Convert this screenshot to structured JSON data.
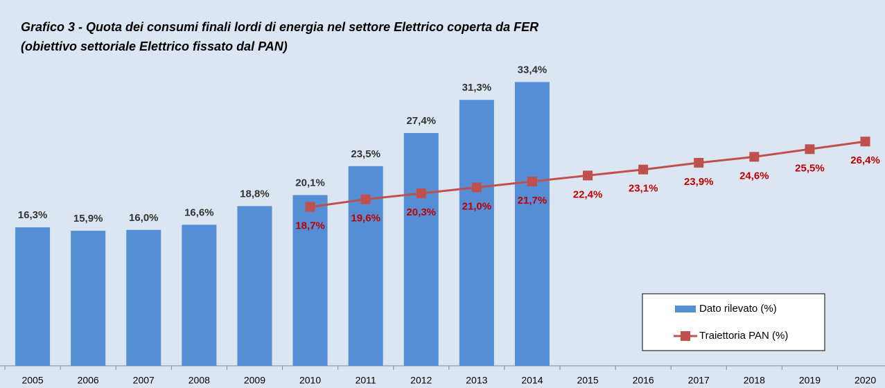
{
  "chart_data": {
    "type": "bar-line",
    "title": "Grafico 3 -  Quota dei consumi finali lordi di energia nel settore Elettrico coperta da FER",
    "subtitle": "(obiettivo settoriale Elettrico fissato dal PAN)",
    "categories": [
      "2005",
      "2006",
      "2007",
      "2008",
      "2009",
      "2010",
      "2011",
      "2012",
      "2013",
      "2014",
      "2015",
      "2016",
      "2017",
      "2018",
      "2019",
      "2020"
    ],
    "ylim": [
      0,
      38
    ],
    "legend": "bottom-right",
    "series": [
      {
        "name": "Dato rilevato (%)",
        "type": "bar",
        "color": "#558ed5",
        "values": [
          16.3,
          15.9,
          16.0,
          16.6,
          18.8,
          20.1,
          23.5,
          27.4,
          31.3,
          33.4,
          null,
          null,
          null,
          null,
          null,
          null
        ],
        "value_labels": [
          "16,3%",
          "15,9%",
          "16,0%",
          "16,6%",
          "18,8%",
          "20,1%",
          "23,5%",
          "27,4%",
          "31,3%",
          "33,4%",
          null,
          null,
          null,
          null,
          null,
          null
        ]
      },
      {
        "name": "Traiettoria PAN (%)",
        "type": "line",
        "color": "#c0504d",
        "values": [
          null,
          null,
          null,
          null,
          null,
          18.7,
          19.6,
          20.3,
          21.0,
          21.7,
          22.4,
          23.1,
          23.9,
          24.6,
          25.5,
          26.4
        ],
        "value_labels": [
          null,
          null,
          null,
          null,
          null,
          "18,7%",
          "19,6%",
          "20,3%",
          "21,0%",
          "21,7%",
          "22,4%",
          "23,1%",
          "23,9%",
          "24,6%",
          "25,5%",
          "26,4%"
        ]
      }
    ]
  }
}
